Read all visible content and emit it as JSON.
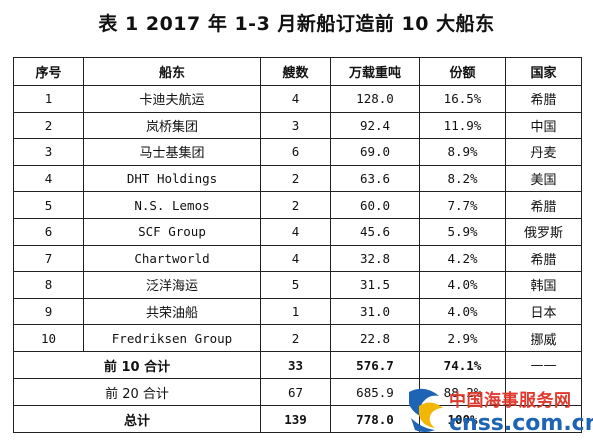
{
  "title": "表 1  2017 年 1-3 月新船订造前 10 大船东",
  "headers": [
    "序号",
    "船东",
    "艘数",
    "万载重吨",
    "份额",
    "国家"
  ],
  "rows": [
    {
      "no": "1",
      "owner": "卡迪夫航运",
      "ships": "4",
      "dwt": "128.0",
      "share": "16.5%",
      "country": "希腊"
    },
    {
      "no": "2",
      "owner": "岚桥集团",
      "ships": "3",
      "dwt": "92.4",
      "share": "11.9%",
      "country": "中国"
    },
    {
      "no": "3",
      "owner": "马士基集团",
      "ships": "6",
      "dwt": "69.0",
      "share": "8.9%",
      "country": "丹麦"
    },
    {
      "no": "4",
      "owner": "DHT Holdings",
      "ships": "2",
      "dwt": "63.6",
      "share": "8.2%",
      "country": "美国"
    },
    {
      "no": "5",
      "owner": "N.S. Lemos",
      "ships": "2",
      "dwt": "60.0",
      "share": "7.7%",
      "country": "希腊"
    },
    {
      "no": "6",
      "owner": "SCF Group",
      "ships": "4",
      "dwt": "45.6",
      "share": "5.9%",
      "country": "俄罗斯"
    },
    {
      "no": "7",
      "owner": "Chartworld",
      "ships": "4",
      "dwt": "32.8",
      "share": "4.2%",
      "country": "希腊"
    },
    {
      "no": "8",
      "owner": "泛洋海运",
      "ships": "5",
      "dwt": "31.5",
      "share": "4.0%",
      "country": "韩国"
    },
    {
      "no": "9",
      "owner": "共荣油船",
      "ships": "1",
      "dwt": "31.0",
      "share": "4.0%",
      "country": "日本"
    },
    {
      "no": "10",
      "owner": "Fredriksen Group",
      "ships": "2",
      "dwt": "22.8",
      "share": "2.9%",
      "country": "挪威"
    }
  ],
  "summary": [
    {
      "label": "前 10 合计",
      "ships": "33",
      "dwt": "576.7",
      "share": "74.1%",
      "country": "——"
    },
    {
      "label": "前 20 合计",
      "ships": "67",
      "dwt": "685.9",
      "share": "88.2%",
      "country": ""
    },
    {
      "label": "总计",
      "ships": "139",
      "dwt": "778.0",
      "share": "100%",
      "country": ""
    }
  ],
  "watermark": {
    "cn": "中国海事服务网",
    "en": "cnss.com.cn",
    "colors": {
      "red": "#e03a2e",
      "blue": "#1e64b4",
      "yellow": "#f2b705"
    }
  }
}
